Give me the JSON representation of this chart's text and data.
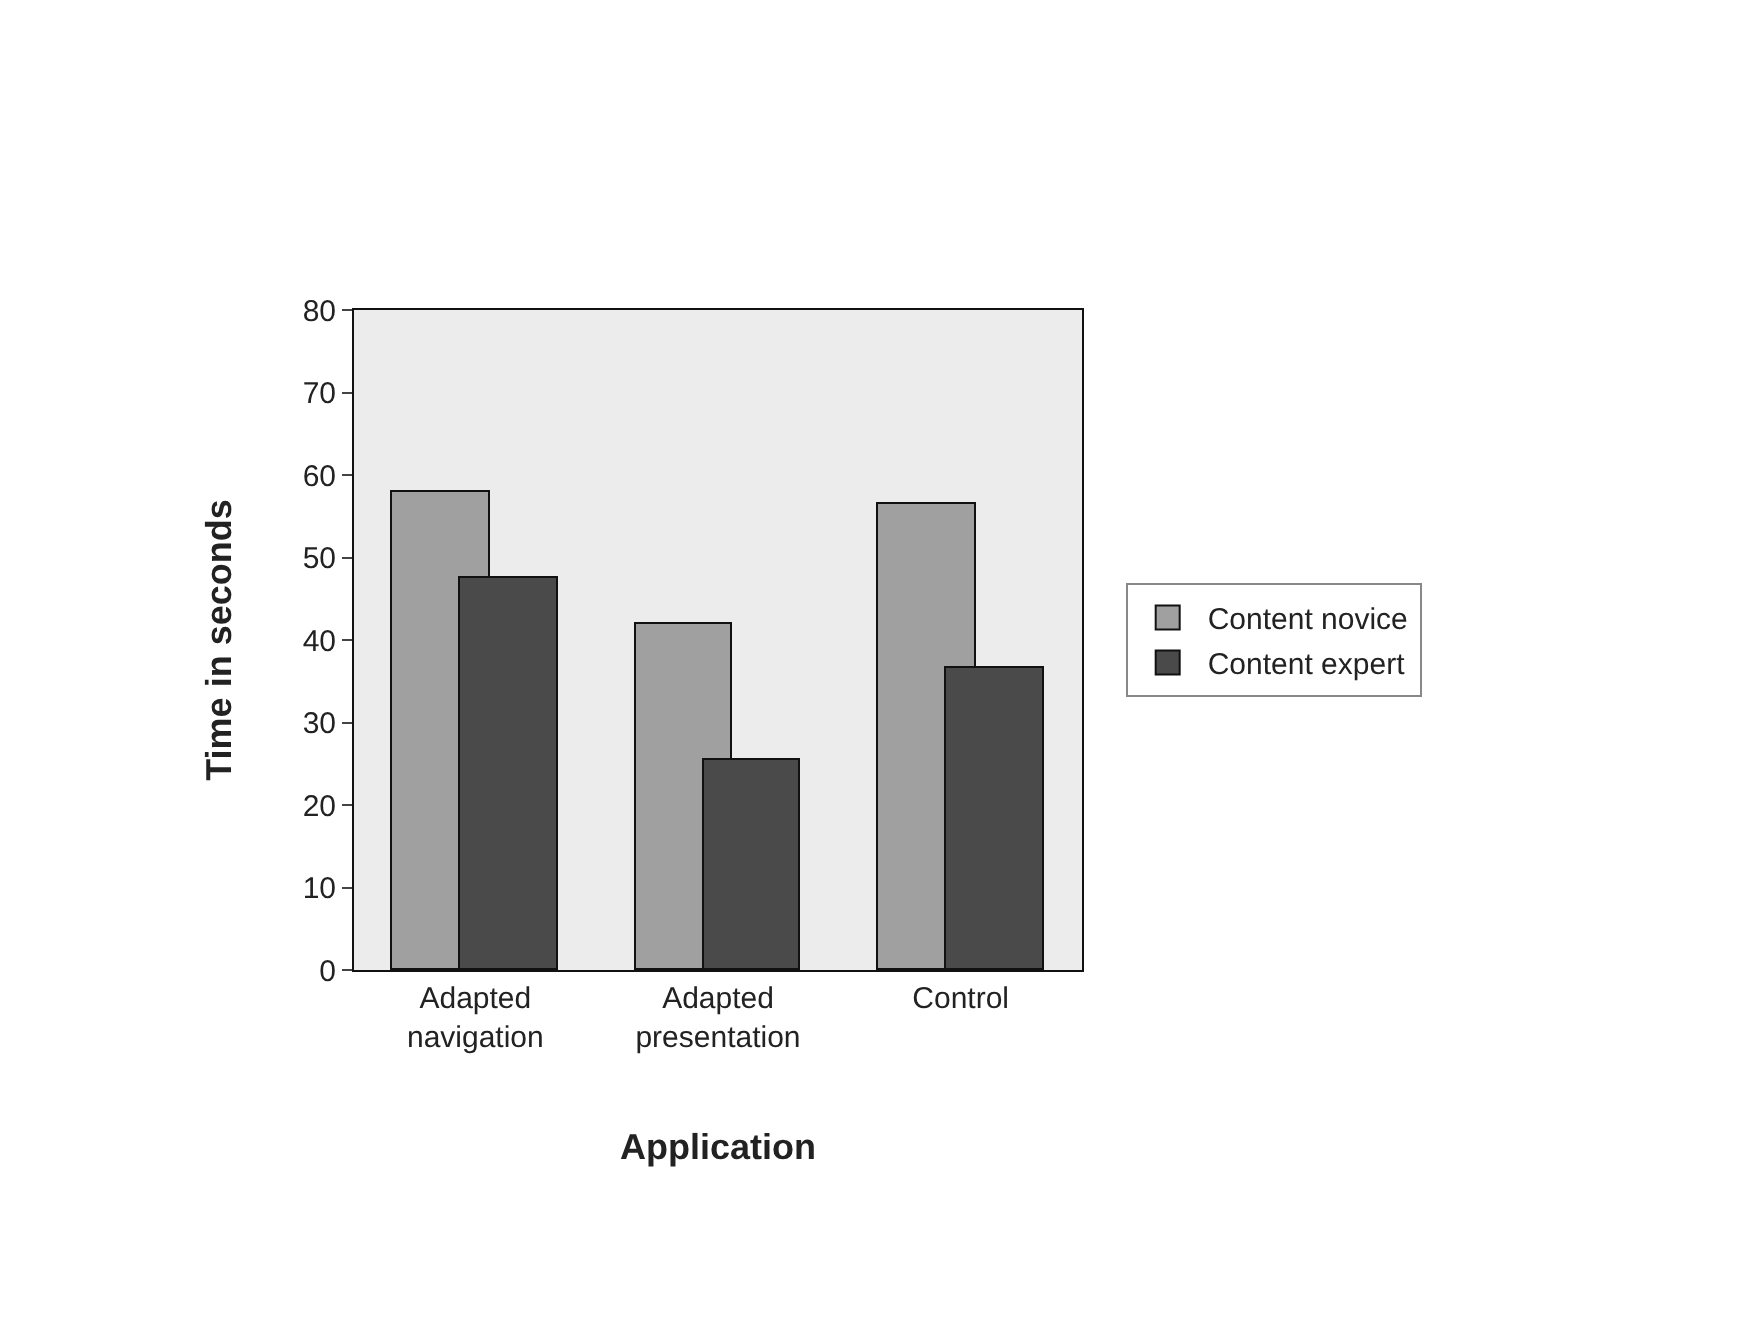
{
  "chart_data": {
    "type": "bar",
    "xlabel": "Application",
    "ylabel": "Time in seconds",
    "categories": [
      "Adapted navigation",
      "Adapted presentation",
      "Control"
    ],
    "series": [
      {
        "name": "Content novice",
        "color": "#a0a0a0",
        "values": [
          58,
          42,
          56.5
        ]
      },
      {
        "name": "Content expert",
        "color": "#4a4a4a",
        "values": [
          47.5,
          25.5,
          36.5
        ]
      }
    ],
    "ylim": [
      0,
      80
    ],
    "yticks": [
      0,
      10,
      20,
      30,
      40,
      50,
      60,
      70,
      80
    ],
    "grid": false,
    "legend": "right"
  }
}
